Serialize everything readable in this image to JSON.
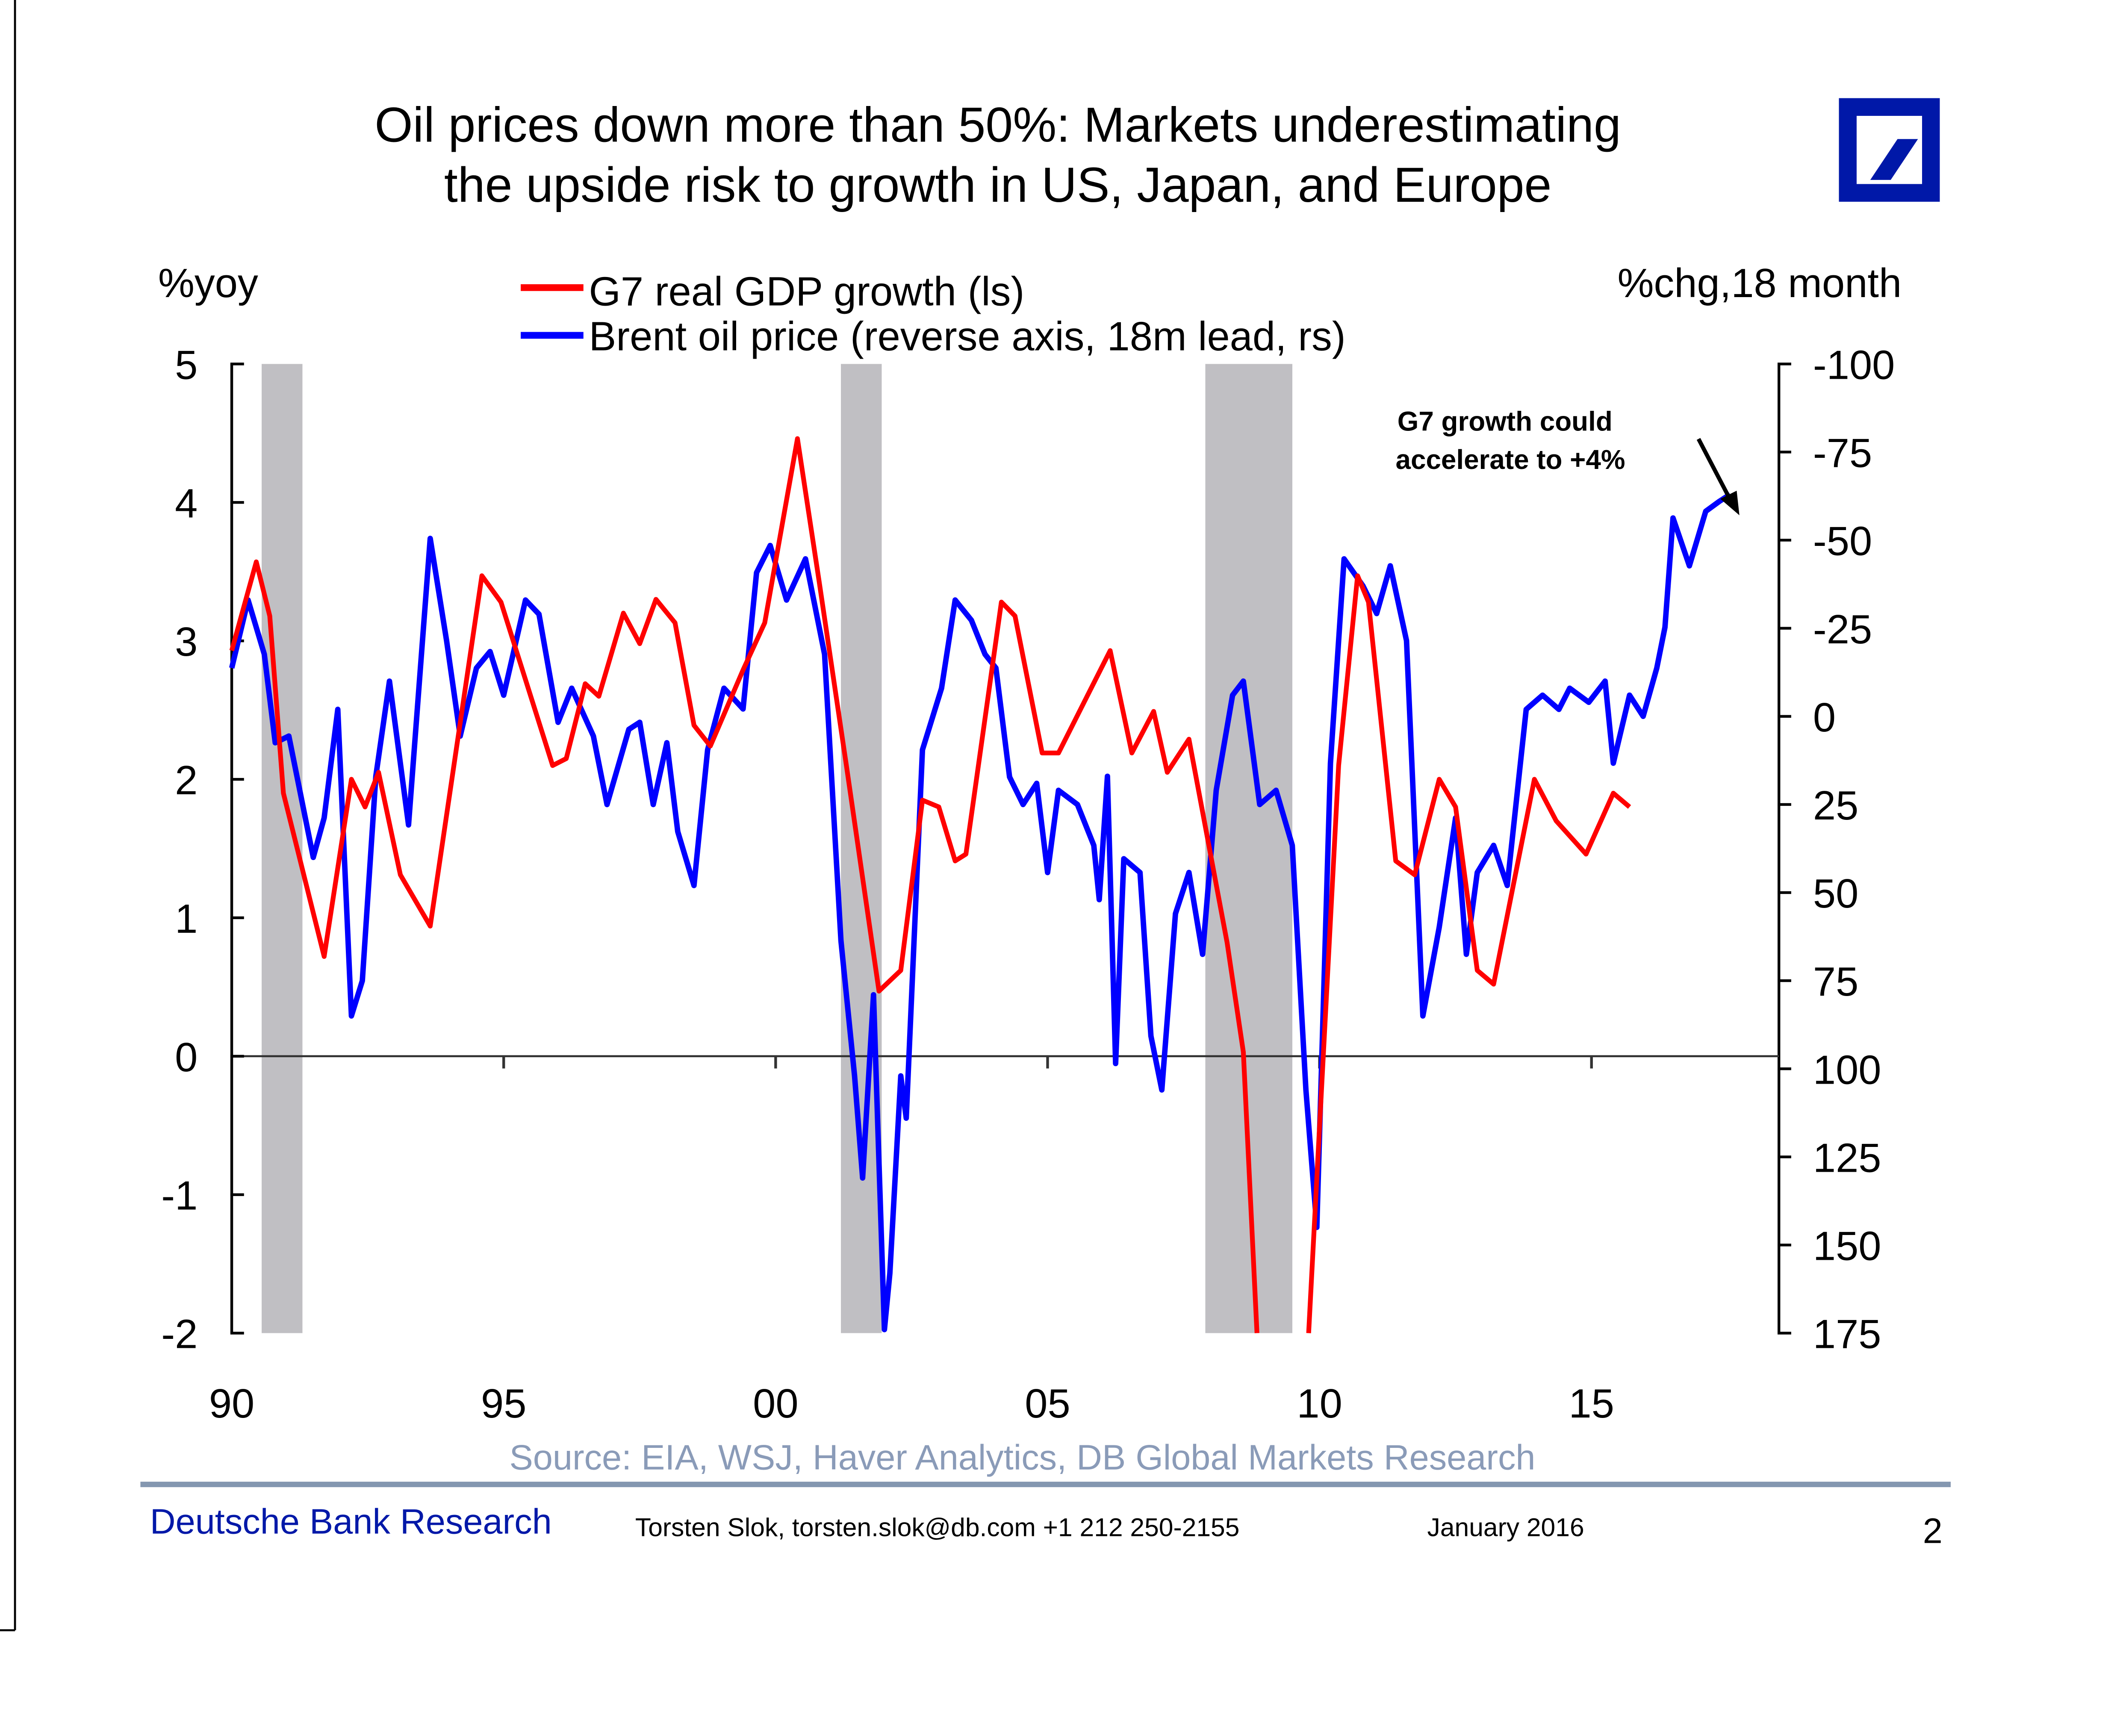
{
  "slide": {
    "title_line1": "Oil prices down more than 50%: Markets underestimating",
    "title_line2": "the upside risk to growth in US, Japan, and Europe",
    "logo": "deutsche-bank-slash-logo",
    "source": "Source: EIA, WSJ, Haver Analytics, DB Global Markets Research",
    "footer_brand": "Deutsche Bank Research",
    "footer_contact": "Torsten Slok, torsten.slok@db.com  +1 212 250-2155",
    "footer_date": "January 2016",
    "page_number": "2",
    "colors": {
      "brand_blue": "#0018a8",
      "source_text": "#8a9bb8",
      "rule": "#8497b0"
    }
  },
  "chart_data": {
    "type": "line",
    "title": "Oil prices down more than 50%: Markets underestimating the upside risk to growth in US, Japan, and Europe",
    "ylabel_left": "%yoy",
    "ylabel_right": "%chg,18 month",
    "xlim": [
      1990,
      2018.5
    ],
    "ylim_left": [
      -2,
      5
    ],
    "ylim_right": [
      -100,
      175
    ],
    "right_axis_reversed": true,
    "x_ticks": [
      1990,
      1995,
      2000,
      2005,
      2010,
      2015
    ],
    "x_tick_labels": [
      "90",
      "95",
      "00",
      "05",
      "10",
      "15"
    ],
    "y_left_ticks": [
      5,
      4,
      3,
      2,
      1,
      0,
      -1,
      -2
    ],
    "y_left_tick_labels": [
      "5",
      "4",
      "3",
      "2",
      "1",
      "0",
      "-1",
      "-2"
    ],
    "y_right_ticks": [
      -100,
      -75,
      -50,
      -25,
      0,
      25,
      50,
      75,
      100,
      125,
      150,
      175
    ],
    "y_right_tick_labels": [
      "-100",
      "-75",
      "-50",
      "-25",
      "0",
      "25",
      "50",
      "75",
      "100",
      "125",
      "150",
      "175"
    ],
    "legend": [
      {
        "name": "G7 real GDP growth (ls)",
        "color": "#ff0000"
      },
      {
        "name": "Brent oil price (reverse axis, 18m lead, rs)",
        "color": "#0000ff"
      }
    ],
    "legend_position": "top-center",
    "annotation": {
      "text_line1": "G7 growth could",
      "text_line2": "accelerate to +4%",
      "arrow": "down-right"
    },
    "recessions": [
      [
        1990.55,
        1991.3
      ],
      [
        2001.2,
        2001.95
      ],
      [
        2007.9,
        2009.5
      ]
    ],
    "series": [
      {
        "name": "G7 real GDP growth (ls)",
        "axis": "left",
        "color": "#ff0000",
        "segments": [
          [
            [
              1990.0,
              2.93
            ],
            [
              1990.45,
              3.57
            ],
            [
              1990.7,
              3.18
            ],
            [
              1990.95,
              1.9
            ],
            [
              1991.7,
              0.72
            ],
            [
              1992.2,
              2.0
            ],
            [
              1992.45,
              1.8
            ],
            [
              1992.7,
              2.05
            ],
            [
              1993.1,
              1.31
            ],
            [
              1993.65,
              0.94
            ],
            [
              1994.6,
              3.47
            ],
            [
              1994.95,
              3.28
            ],
            [
              1995.9,
              2.1
            ],
            [
              1996.15,
              2.15
            ],
            [
              1996.5,
              2.69
            ],
            [
              1996.75,
              2.6
            ],
            [
              1997.2,
              3.2
            ],
            [
              1997.5,
              2.98
            ],
            [
              1997.8,
              3.3
            ],
            [
              1998.15,
              3.13
            ],
            [
              1998.5,
              2.39
            ],
            [
              1998.8,
              2.24
            ],
            [
              1999.4,
              2.79
            ],
            [
              1999.8,
              3.13
            ],
            [
              2000.4,
              4.46
            ],
            [
              2000.8,
              3.43
            ],
            [
              2001.3,
              2.1
            ],
            [
              2001.9,
              0.47
            ],
            [
              2002.3,
              0.62
            ],
            [
              2002.7,
              1.85
            ],
            [
              2003.0,
              1.8
            ],
            [
              2003.3,
              1.41
            ],
            [
              2003.5,
              1.46
            ],
            [
              2004.15,
              3.28
            ],
            [
              2004.4,
              3.18
            ],
            [
              2004.9,
              2.19
            ],
            [
              2005.2,
              2.19
            ],
            [
              2005.65,
              2.54
            ],
            [
              2006.15,
              2.93
            ],
            [
              2006.55,
              2.19
            ],
            [
              2006.95,
              2.49
            ],
            [
              2007.2,
              2.05
            ],
            [
              2007.6,
              2.29
            ],
            [
              2008.3,
              0.82
            ],
            [
              2008.6,
              0.03
            ],
            [
              2008.85,
              -2.0
            ]
          ],
          [
            [
              2009.8,
              -2.0
            ],
            [
              2010.35,
              2.1
            ],
            [
              2010.7,
              3.47
            ],
            [
              2010.9,
              3.28
            ],
            [
              2011.4,
              1.41
            ],
            [
              2011.75,
              1.31
            ],
            [
              2012.2,
              2.0
            ],
            [
              2012.5,
              1.8
            ],
            [
              2012.9,
              0.62
            ],
            [
              2013.2,
              0.52
            ],
            [
              2013.95,
              2.0
            ],
            [
              2014.35,
              1.7
            ],
            [
              2014.9,
              1.46
            ],
            [
              2015.4,
              1.9
            ],
            [
              2015.7,
              1.8
            ]
          ]
        ]
      },
      {
        "name": "Brent oil price (reverse axis, 18m lead, rs)",
        "axis": "right",
        "color": "#0000ff",
        "segments": [
          [
            [
              1990.0,
              -13.7
            ],
            [
              1990.3,
              -33
            ],
            [
              1990.6,
              -17.6
            ],
            [
              1990.8,
              7.5
            ],
            [
              1991.05,
              5.6
            ],
            [
              1991.25,
              21
            ],
            [
              1991.5,
              40
            ],
            [
              1991.7,
              28.8
            ],
            [
              1991.95,
              -2
            ],
            [
              1992.2,
              85
            ],
            [
              1992.4,
              75
            ],
            [
              1992.65,
              17
            ],
            [
              1992.9,
              -10
            ],
            [
              1993.25,
              30.8
            ],
            [
              1993.65,
              -50.5
            ],
            [
              1993.95,
              -21.5
            ],
            [
              1994.2,
              5.6
            ],
            [
              1994.5,
              -13.7
            ],
            [
              1994.75,
              -18.4
            ],
            [
              1995.0,
              -6
            ],
            [
              1995.4,
              -33
            ],
            [
              1995.65,
              -29
            ],
            [
              1996.0,
              1.7
            ],
            [
              1996.25,
              -8
            ],
            [
              1996.65,
              5.6
            ],
            [
              1996.9,
              25
            ],
            [
              1997.3,
              3.7
            ],
            [
              1997.5,
              1.7
            ],
            [
              1997.75,
              25
            ],
            [
              1998.0,
              7.5
            ],
            [
              1998.2,
              32.7
            ],
            [
              1998.5,
              48
            ],
            [
              1998.75,
              9.5
            ],
            [
              1999.05,
              -8
            ],
            [
              1999.4,
              -2.1
            ],
            [
              1999.65,
              -40.8
            ],
            [
              1999.9,
              -48.5
            ],
            [
              2000.2,
              -33
            ],
            [
              2000.55,
              -44.7
            ],
            [
              2000.9,
              -17.6
            ],
            [
              2001.2,
              63.6
            ],
            [
              2001.45,
              102
            ],
            [
              2001.6,
              131
            ],
            [
              2001.8,
              79
            ],
            [
              2002.0,
              174
            ],
            [
              2002.1,
              158
            ],
            [
              2002.3,
              102
            ],
            [
              2002.4,
              114
            ],
            [
              2002.7,
              9.5
            ],
            [
              2003.05,
              -8
            ],
            [
              2003.3,
              -33
            ],
            [
              2003.6,
              -27.3
            ],
            [
              2003.85,
              -17.6
            ],
            [
              2004.05,
              -13.7
            ],
            [
              2004.3,
              17.2
            ],
            [
              2004.55,
              25
            ],
            [
              2004.8,
              19
            ],
            [
              2005.0,
              44.3
            ],
            [
              2005.2,
              21
            ],
            [
              2005.55,
              25
            ],
            [
              2005.85,
              36.6
            ],
            [
              2005.95,
              52
            ],
            [
              2006.1,
              17
            ],
            [
              2006.25,
              98.5
            ],
            [
              2006.4,
              40.4
            ],
            [
              2006.7,
              44.3
            ],
            [
              2006.9,
              90.7
            ],
            [
              2007.1,
              106
            ],
            [
              2007.35,
              56
            ],
            [
              2007.6,
              44.3
            ],
            [
              2007.85,
              67.5
            ],
            [
              2008.1,
              21
            ],
            [
              2008.4,
              -6
            ],
            [
              2008.6,
              -10
            ],
            [
              2008.9,
              25
            ],
            [
              2009.2,
              21
            ],
            [
              2009.5,
              36.6
            ],
            [
              2009.75,
              106
            ],
            [
              2009.95,
              145
            ],
            [
              2010.2,
              13.3
            ],
            [
              2010.45,
              -44.7
            ],
            [
              2010.8,
              -37
            ],
            [
              2011.05,
              -29.2
            ],
            [
              2011.3,
              -42.7
            ],
            [
              2011.6,
              -21.5
            ],
            [
              2011.9,
              85
            ],
            [
              2012.2,
              59.8
            ],
            [
              2012.5,
              28.8
            ],
            [
              2012.7,
              67.5
            ],
            [
              2012.9,
              44.3
            ],
            [
              2013.2,
              36.6
            ],
            [
              2013.45,
              48
            ],
            [
              2013.8,
              -2
            ],
            [
              2014.1,
              -6
            ],
            [
              2014.4,
              -2
            ],
            [
              2014.6,
              -8
            ],
            [
              2014.95,
              -4
            ],
            [
              2015.25,
              -10
            ],
            [
              2015.4,
              13.3
            ],
            [
              2015.7,
              -6
            ],
            [
              2015.95,
              0
            ],
            [
              2016.2,
              -13.7
            ],
            [
              2016.35,
              -25.3
            ],
            [
              2016.5,
              -56.3
            ],
            [
              2016.8,
              -42.7
            ],
            [
              2017.1,
              -58.2
            ],
            [
              2017.35,
              -61
            ],
            [
              2017.55,
              -63
            ]
          ]
        ]
      }
    ]
  }
}
